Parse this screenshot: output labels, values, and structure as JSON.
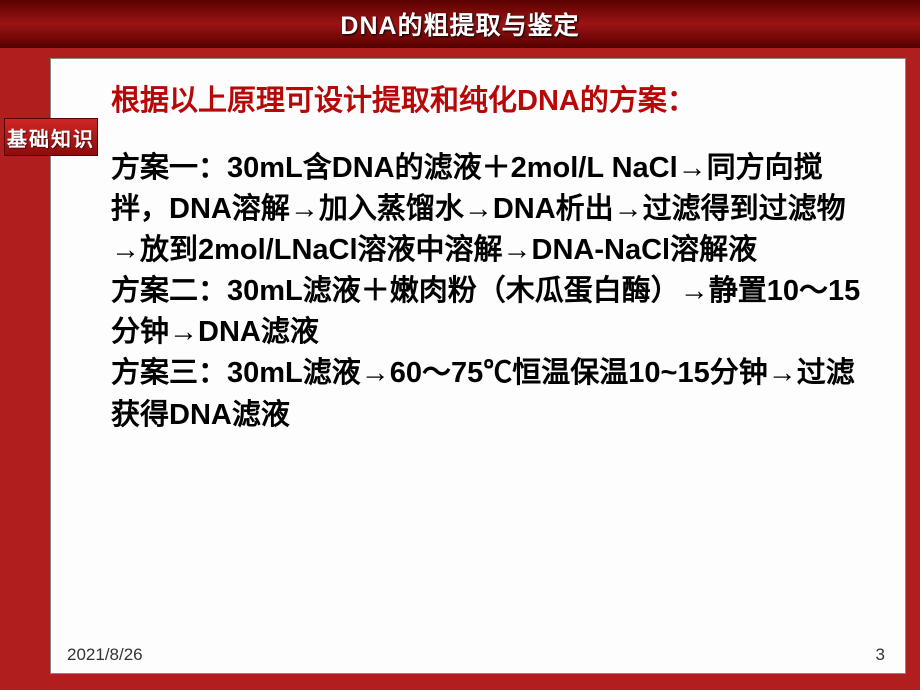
{
  "header": {
    "title": "DNA的粗提取与鉴定"
  },
  "sidetag": {
    "label": "基础知识"
  },
  "headline": "根据以上原理可设计提取和纯化DNA的方案：",
  "body": {
    "p1": "方案一：30mL含DNA的滤液＋2mol/L NaCl→同方向搅拌，DNA溶解→加入蒸馏水→DNA析出→过滤得到过滤物→放到2mol/LNaCl溶液中溶解→DNA-NaCl溶解液",
    "p2": "方案二：30mL滤液＋嫩肉粉（木瓜蛋白酶）→静置10～15分钟→DNA滤液",
    "p3": "方案三：30mL滤液→60～75℃恒温保温10~15分钟→过滤获得DNA滤液"
  },
  "footer": {
    "date": "2021/8/26",
    "page": "3"
  },
  "style": {
    "background_color": "#b01e1e",
    "content_bg": "#fdfdfd",
    "headline_color": "#b80707",
    "body_color": "#000000",
    "header_text_color": "#ffffff",
    "tag_text_color": "#ffffff",
    "headline_fontsize": 29,
    "body_fontsize": 29,
    "header_fontsize": 25,
    "tag_fontsize": 20,
    "footer_fontsize": 17
  }
}
